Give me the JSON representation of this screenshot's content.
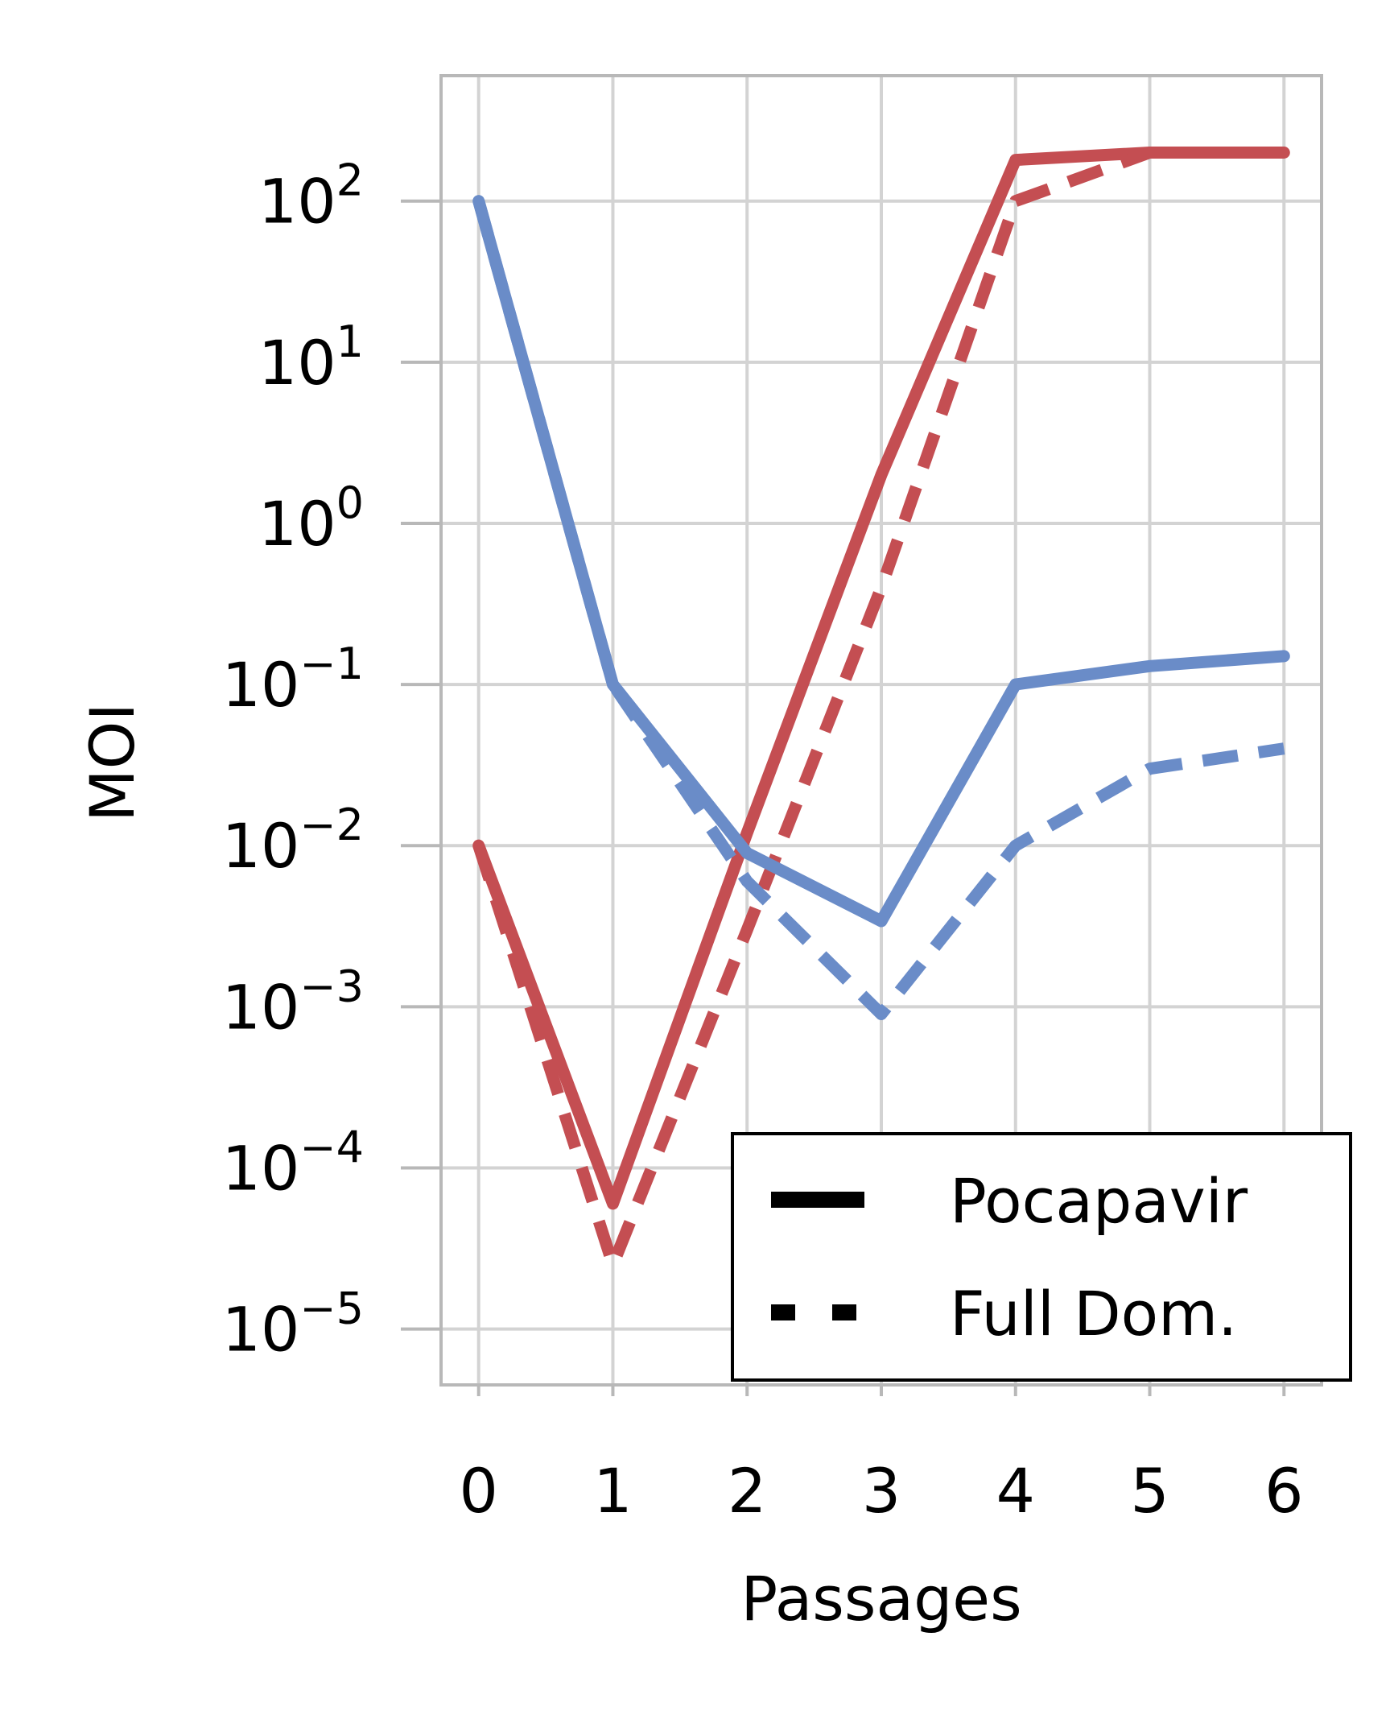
{
  "chart_data": {
    "type": "line",
    "xlabel": "Passages",
    "ylabel": "MOI",
    "x": [
      0,
      1,
      2,
      3,
      4,
      5,
      6
    ],
    "xlim": [
      -0.28,
      6.28
    ],
    "ylim": [
      4.5e-06,
      600
    ],
    "yscale": "log",
    "x_ticks": [
      "0",
      "1",
      "2",
      "3",
      "4",
      "5",
      "6"
    ],
    "y_ticks": [
      {
        "value": 1e-05,
        "base": "10",
        "exp": "−5"
      },
      {
        "value": 0.0001,
        "base": "10",
        "exp": "−4"
      },
      {
        "value": 0.001,
        "base": "10",
        "exp": "−3"
      },
      {
        "value": 0.01,
        "base": "10",
        "exp": "−2"
      },
      {
        "value": 0.1,
        "base": "10",
        "exp": "−1"
      },
      {
        "value": 1,
        "base": "10",
        "exp": "0"
      },
      {
        "value": 10,
        "base": "10",
        "exp": "1"
      },
      {
        "value": 100,
        "base": "10",
        "exp": "2"
      }
    ],
    "grid": true,
    "series": [
      {
        "color": "#c44e52",
        "style": "solid",
        "values": [
          0.01,
          6e-05,
          0.012,
          2,
          180,
          200,
          200
        ]
      },
      {
        "color": "#c44e52",
        "style": "dashed",
        "values": [
          0.01,
          2.5e-05,
          0.003,
          0.4,
          100,
          200,
          200
        ]
      },
      {
        "color": "#6a8cc8",
        "style": "solid",
        "values": [
          100,
          0.1,
          0.009,
          0.0034,
          0.1,
          0.13,
          0.15
        ]
      },
      {
        "color": "#6a8cc8",
        "style": "dashed",
        "values": [
          100,
          0.1,
          0.006,
          0.0009,
          0.01,
          0.03,
          0.04
        ]
      }
    ],
    "legend": {
      "placement": "lower-right",
      "entries": [
        {
          "label": "Pocapavir",
          "style": "solid",
          "color": "#000000"
        },
        {
          "label": "Full Dom.",
          "style": "dashed",
          "color": "#000000"
        }
      ]
    }
  }
}
